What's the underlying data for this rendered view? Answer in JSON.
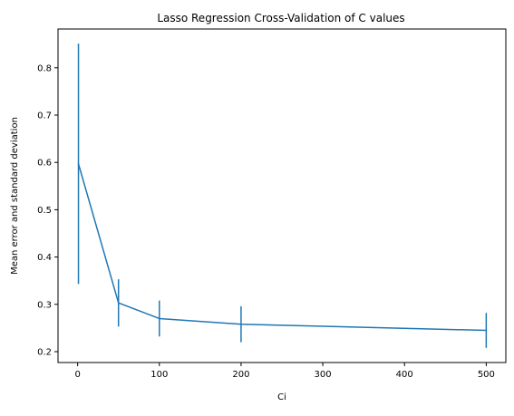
{
  "chart_data": {
    "type": "line",
    "title": "Lasso Regression Cross-Validation of C values",
    "xlabel": "Ci",
    "ylabel": "Mean error and standard deviation",
    "xlim": [
      -24,
      524
    ],
    "ylim": [
      0.177,
      0.882
    ],
    "x_ticks": [
      0,
      100,
      200,
      300,
      400,
      500
    ],
    "x_tick_labels": [
      "0",
      "100",
      "200",
      "300",
      "400",
      "500"
    ],
    "y_ticks": [
      0.2,
      0.3,
      0.4,
      0.5,
      0.6,
      0.7,
      0.8
    ],
    "y_tick_labels": [
      "0.2",
      "0.3",
      "0.4",
      "0.5",
      "0.6",
      "0.7",
      "0.8"
    ],
    "grid": false,
    "series": [
      {
        "color": "#1f77b4",
        "x": [
          1,
          50,
          100,
          200,
          500
        ],
        "y": [
          0.597,
          0.303,
          0.27,
          0.258,
          0.245
        ],
        "error": [
          0.254,
          0.05,
          0.038,
          0.038,
          0.037
        ]
      }
    ]
  }
}
